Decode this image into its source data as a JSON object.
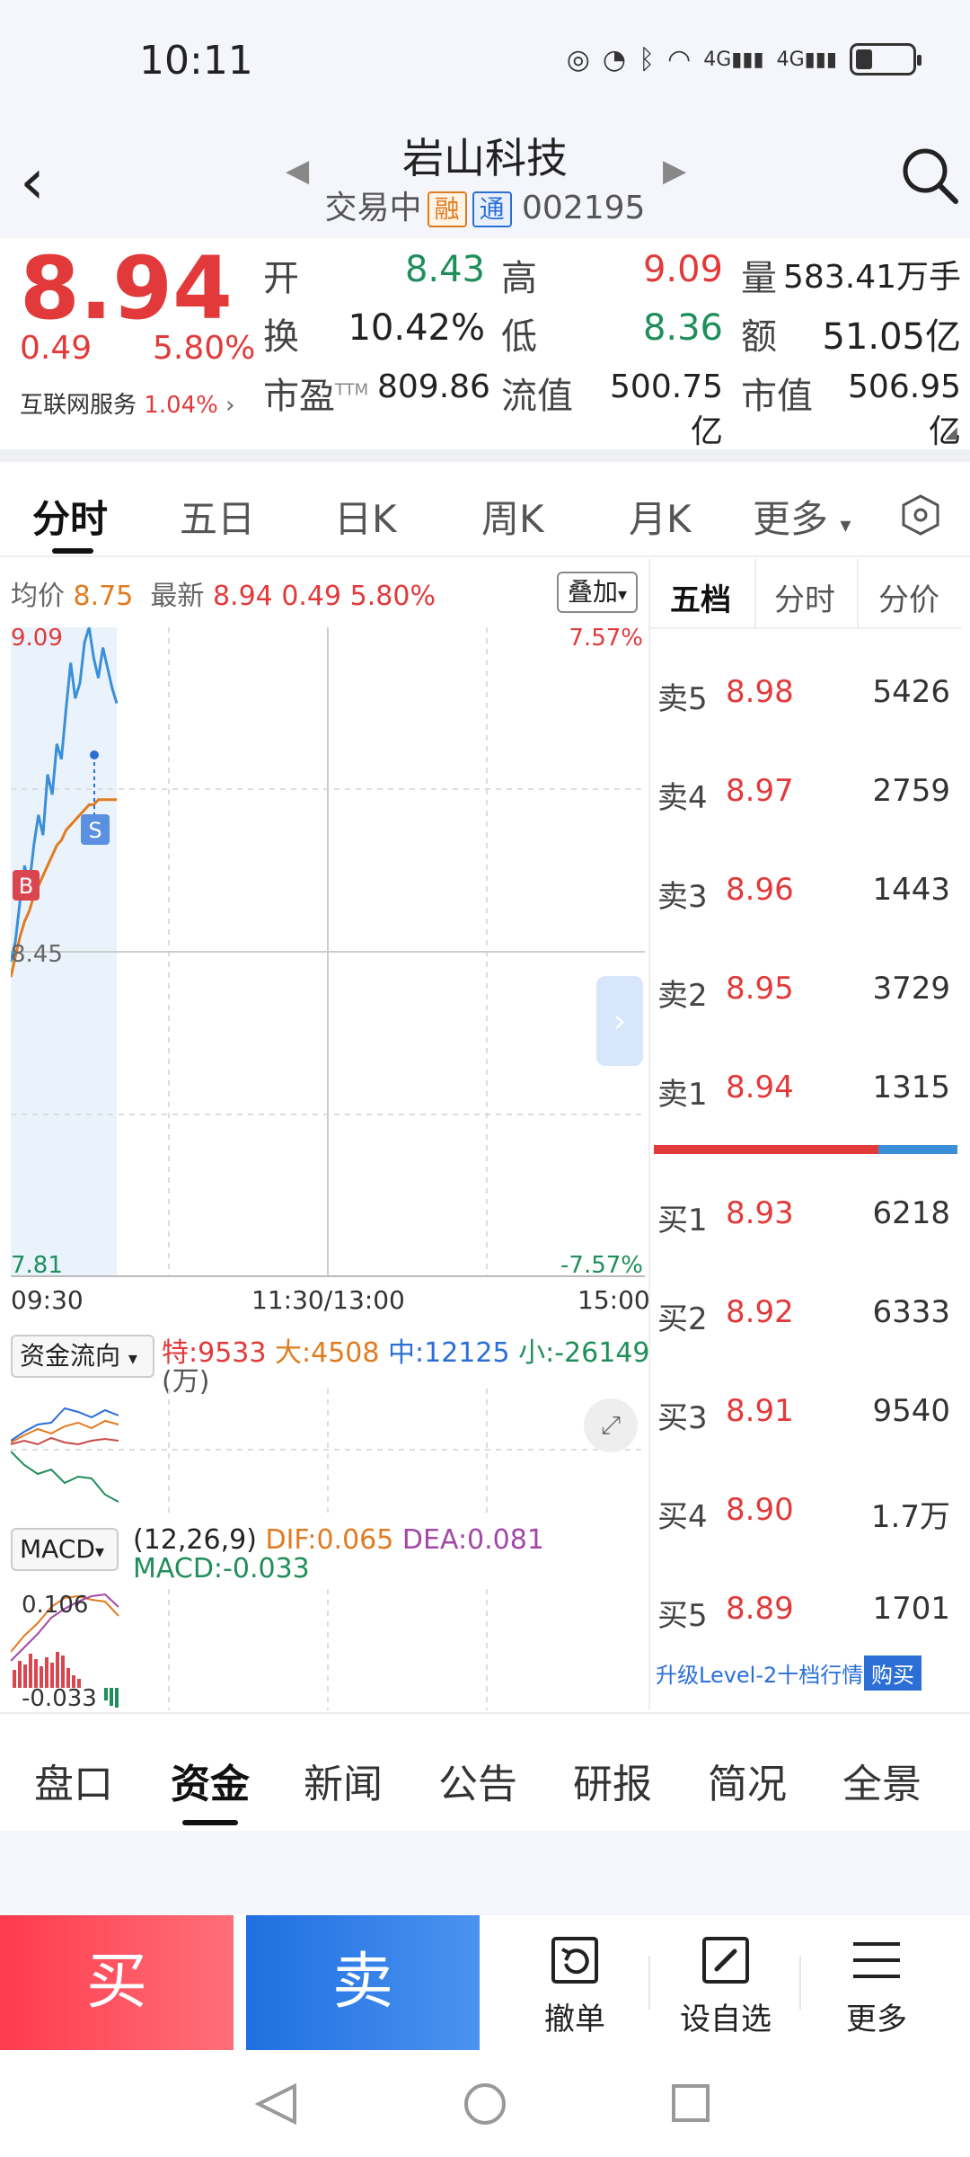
{
  "status_bar": {
    "time": "10:11",
    "icons": [
      "no-disturb-icon",
      "speed-icon",
      "bluetooth-icon",
      "wifi-icon",
      "signal-4g-icon",
      "signal-4g-icon",
      "battery-icon"
    ]
  },
  "header": {
    "stock_name": "岩山科技",
    "status": "交易中",
    "tag_rong": "融",
    "tag_tong": "通",
    "code": "002195"
  },
  "quote": {
    "price": "8.94",
    "change": "0.49",
    "change_pct": "5.80%",
    "sector_name": "互联网服务",
    "sector_pct": "1.04%",
    "fields": {
      "open_label": "开",
      "open": "8.43",
      "high_label": "高",
      "high": "9.09",
      "volume_label": "量",
      "volume": "583.41万手",
      "turnover_label": "换",
      "turnover": "10.42%",
      "low_label": "低",
      "low": "8.36",
      "amount_label": "额",
      "amount": "51.05亿",
      "pe_label": "市盈",
      "pe_sup": "TTM",
      "pe": "809.86",
      "float_cap_label": "流值",
      "float_cap": "500.75亿",
      "market_cap_label": "市值",
      "market_cap": "506.95亿"
    }
  },
  "chart_tabs": [
    "分时",
    "五日",
    "日K",
    "周K",
    "月K",
    "更多"
  ],
  "chart": {
    "avg_label": "均价",
    "avg_price": "8.75",
    "latest_label": "最新",
    "latest_price": "8.94",
    "latest_change": "0.49",
    "latest_pct": "5.80%",
    "overlay_label": "叠加",
    "y_top": "9.09",
    "y_mid": "8.45",
    "y_bottom": "7.81",
    "pct_top": "7.57%",
    "pct_bottom": "-7.57%",
    "x_start": "09:30",
    "x_mid": "11:30/13:00",
    "x_end": "15:00",
    "marker_buy": "B",
    "marker_sell": "S",
    "colors": {
      "price_line": "#3a8fd8",
      "avg_line": "#e07b1f"
    }
  },
  "chart_data": {
    "type": "line",
    "title": "",
    "xlabel": "",
    "ylabel": "",
    "ylim": [
      7.81,
      9.09
    ],
    "x_range": [
      "09:30",
      "15:00"
    ],
    "series": [
      {
        "values": [
          8.43,
          8.47,
          8.55,
          8.62,
          8.58,
          8.66,
          8.72,
          8.68,
          8.8,
          8.76,
          8.86,
          8.83,
          8.93,
          9.02,
          8.95,
          8.98,
          9.06,
          9.09,
          9.03,
          8.99,
          9.05,
          9.01,
          8.97,
          8.94
        ]
      },
      {
        "values": [
          8.4,
          8.44,
          8.48,
          8.51,
          8.53,
          8.56,
          8.58,
          8.6,
          8.62,
          8.64,
          8.66,
          8.67,
          8.69,
          8.7,
          8.71,
          8.72,
          8.73,
          8.74,
          8.74,
          8.75,
          8.75,
          8.75,
          8.75,
          8.75
        ]
      }
    ]
  },
  "fund_flow": {
    "label": "资金流向",
    "te": "特:9533",
    "da": "大:4508",
    "zhong": "中:12125",
    "xiao": "小:-26149",
    "unit": "(万)"
  },
  "macd": {
    "label": "MACD",
    "params": "(12,26,9)",
    "dif": "DIF:0.065",
    "dea": "DEA:0.081",
    "macd": "MACD:-0.033",
    "y_top": "0.106",
    "y_bottom": "-0.033"
  },
  "order_book": {
    "tabs": [
      "五档",
      "分时",
      "分价"
    ],
    "asks": [
      {
        "label": "卖5",
        "price": "8.98",
        "volume": "5426"
      },
      {
        "label": "卖4",
        "price": "8.97",
        "volume": "2759"
      },
      {
        "label": "卖3",
        "price": "8.96",
        "volume": "1443"
      },
      {
        "label": "卖2",
        "price": "8.95",
        "volume": "3729"
      },
      {
        "label": "卖1",
        "price": "8.94",
        "volume": "1315"
      }
    ],
    "bids": [
      {
        "label": "买1",
        "price": "8.93",
        "volume": "6218"
      },
      {
        "label": "买2",
        "price": "8.92",
        "volume": "6333"
      },
      {
        "label": "买3",
        "price": "8.91",
        "volume": "9540"
      },
      {
        "label": "买4",
        "price": "8.90",
        "volume": "1.7万"
      },
      {
        "label": "买5",
        "price": "8.89",
        "volume": "1701"
      }
    ],
    "upgrade_text": "升级Level-2十档行情",
    "buy_label": "购买"
  },
  "info_tabs": [
    "盘口",
    "资金",
    "新闻",
    "公告",
    "研报",
    "简况",
    "全景"
  ],
  "toolbar": {
    "buy": "买",
    "sell": "卖",
    "cancel": "撤单",
    "watchlist": "设自选",
    "more": "更多"
  }
}
